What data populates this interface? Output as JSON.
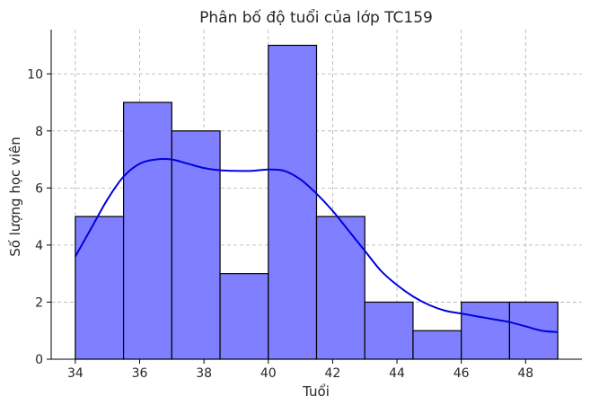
{
  "chart_data": {
    "type": "bar",
    "title": "Phân bố độ tuổi của lớp TC159",
    "xlabel": "Tuổi",
    "ylabel": "Số lượng học viên",
    "bins": [
      {
        "start": 34.0,
        "end": 35.5,
        "count": 5
      },
      {
        "start": 35.5,
        "end": 37.0,
        "count": 9
      },
      {
        "start": 37.0,
        "end": 38.5,
        "count": 8
      },
      {
        "start": 38.5,
        "end": 40.0,
        "count": 3
      },
      {
        "start": 40.0,
        "end": 41.5,
        "count": 11
      },
      {
        "start": 41.5,
        "end": 43.0,
        "count": 5
      },
      {
        "start": 43.0,
        "end": 44.5,
        "count": 2
      },
      {
        "start": 44.5,
        "end": 46.0,
        "count": 1
      },
      {
        "start": 46.0,
        "end": 47.5,
        "count": 2
      },
      {
        "start": 47.5,
        "end": 49.0,
        "count": 2
      }
    ],
    "kde": {
      "x": [
        34,
        34.5,
        35,
        35.5,
        36,
        36.5,
        37,
        37.5,
        38,
        38.5,
        39,
        39.5,
        40,
        40.5,
        41,
        41.5,
        42,
        42.5,
        43,
        43.5,
        44,
        44.5,
        45,
        45.5,
        46,
        46.5,
        47,
        47.5,
        48,
        48.5,
        49
      ],
      "y": [
        3.6,
        4.6,
        5.6,
        6.4,
        6.85,
        7.0,
        7.0,
        6.85,
        6.7,
        6.62,
        6.6,
        6.6,
        6.65,
        6.6,
        6.3,
        5.8,
        5.2,
        4.5,
        3.8,
        3.1,
        2.6,
        2.2,
        1.9,
        1.7,
        1.6,
        1.5,
        1.4,
        1.3,
        1.15,
        1.0,
        0.95
      ]
    },
    "xlim": [
      33.25,
      49.75
    ],
    "ylim": [
      0,
      11.55
    ],
    "xticks": [
      34,
      36,
      38,
      40,
      42,
      44,
      46,
      48
    ],
    "yticks": [
      0,
      2,
      4,
      6,
      8,
      10
    ],
    "grid": true,
    "colors": {
      "bar_fill": "#7f7fff",
      "bar_edge": "#000000",
      "kde_line": "#0000dd"
    }
  }
}
